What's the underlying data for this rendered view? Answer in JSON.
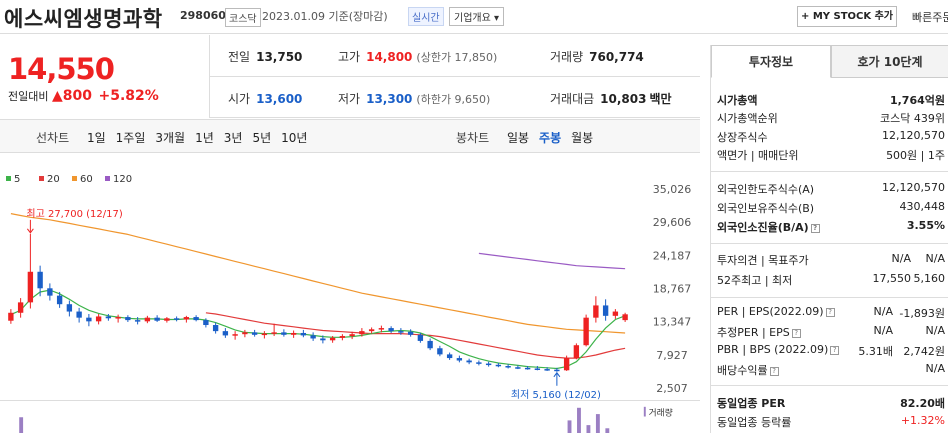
{
  "header": {
    "company_name": "에스씨엠생명과학",
    "stock_code": "298060",
    "market": "코스닥",
    "date": "2023.01.09 기준(장마감)",
    "live": "실시간",
    "overview": "기업개요 ▾",
    "mystock": "+ MY STOCK 추가",
    "quick_order": "빠른주문"
  },
  "price": {
    "current": "14,550",
    "change_label": "전일대비",
    "change_value": "▲800",
    "change_rate": "+5.82%"
  },
  "metrics": {
    "prev_close_label": "전일",
    "prev_close": "13,750",
    "high_label": "고가",
    "high": "14,800",
    "upper_limit": "(상한가 17,850)",
    "volume_label": "거래량",
    "volume": "760,774",
    "open_label": "시가",
    "open": "13,600",
    "low_label": "저가",
    "low": "13,300",
    "lower_limit": "(하한가 9,650)",
    "amount_label": "거래대금",
    "amount": "10,803",
    "amount_unit": "백만"
  },
  "tabs": {
    "line_head": "선차트",
    "line_items": [
      "1일",
      "1주일",
      "3개월",
      "1년",
      "3년",
      "5년",
      "10년"
    ],
    "candle_head": "봉차트",
    "candle_items": [
      "일봉",
      "주봉",
      "월봉"
    ],
    "candle_active": "주봉"
  },
  "chart_data": {
    "type": "candlestick",
    "legend": [
      "5",
      "20",
      "60",
      "120"
    ],
    "legend_colors": [
      "#3db34a",
      "#e23b3b",
      "#f0962e",
      "#9a5bc4"
    ],
    "y_ticks": [
      "35,026",
      "29,606",
      "24,187",
      "18,767",
      "13,347",
      "7,927",
      "2,507"
    ],
    "ylim": [
      2507,
      35026
    ],
    "max_annotation": "최고 27,700 (12/17)",
    "min_annotation": "최저 5,160 (12/02)",
    "volume_label": "거래량",
    "candles": [
      [
        13500,
        15400,
        13000,
        14800
      ],
      [
        14800,
        17200,
        14000,
        16500
      ],
      [
        16500,
        27700,
        15500,
        21500
      ],
      [
        21500,
        22500,
        17500,
        18800
      ],
      [
        18800,
        19600,
        16800,
        17600
      ],
      [
        17600,
        18200,
        15600,
        16200
      ],
      [
        16200,
        16800,
        14200,
        15000
      ],
      [
        15000,
        15600,
        13200,
        14000
      ],
      [
        14000,
        14600,
        12600,
        13400
      ],
      [
        13400,
        14600,
        12900,
        14200
      ],
      [
        14200,
        14600,
        13500,
        13900
      ],
      [
        13900,
        14500,
        13200,
        14100
      ],
      [
        14100,
        14400,
        13300,
        13600
      ],
      [
        13600,
        14100,
        12900,
        13400
      ],
      [
        13400,
        14300,
        13100,
        14000
      ],
      [
        14000,
        14400,
        13300,
        13500
      ],
      [
        13500,
        14100,
        13200,
        13900
      ],
      [
        13900,
        14200,
        13400,
        13700
      ],
      [
        13700,
        14300,
        13200,
        14100
      ],
      [
        14100,
        14400,
        13400,
        13600
      ],
      [
        13600,
        13900,
        12400,
        12800
      ],
      [
        12800,
        13200,
        11400,
        11800
      ],
      [
        11800,
        12300,
        10700,
        11100
      ],
      [
        11100,
        11800,
        10400,
        11300
      ],
      [
        11300,
        12000,
        10800,
        11600
      ],
      [
        11600,
        12000,
        10900,
        11200
      ],
      [
        11200,
        11800,
        10600,
        11400
      ],
      [
        11400,
        13000,
        11000,
        11600
      ],
      [
        11600,
        12100,
        10900,
        11200
      ],
      [
        11200,
        11900,
        10700,
        11500
      ],
      [
        11500,
        12000,
        10800,
        11100
      ],
      [
        11100,
        11600,
        10200,
        10600
      ],
      [
        10600,
        11100,
        9800,
        10300
      ],
      [
        10300,
        11000,
        9900,
        10700
      ],
      [
        10700,
        11300,
        10300,
        11000
      ],
      [
        11000,
        11700,
        10500,
        11300
      ],
      [
        11300,
        12300,
        10900,
        11800
      ],
      [
        11800,
        12400,
        11400,
        12100
      ],
      [
        12100,
        12700,
        11600,
        12300
      ],
      [
        12300,
        12600,
        11500,
        11800
      ],
      [
        11800,
        12300,
        11200,
        11700
      ],
      [
        11700,
        12100,
        10900,
        11200
      ],
      [
        11200,
        11500,
        9900,
        10200
      ],
      [
        10200,
        10600,
        8700,
        9000
      ],
      [
        9000,
        9400,
        7700,
        8000
      ],
      [
        8000,
        8300,
        7100,
        7400
      ],
      [
        7400,
        7800,
        6700,
        7000
      ],
      [
        7000,
        7300,
        6400,
        6700
      ],
      [
        6700,
        7000,
        6200,
        6500
      ],
      [
        6500,
        6800,
        6000,
        6300
      ],
      [
        6300,
        6600,
        5900,
        6100
      ],
      [
        6100,
        6400,
        5700,
        5900
      ],
      [
        5900,
        6200,
        5600,
        5800
      ],
      [
        5800,
        6100,
        5500,
        5700
      ],
      [
        5700,
        6100,
        5400,
        5600
      ],
      [
        5600,
        5900,
        5300,
        5500
      ],
      [
        5500,
        5800,
        5160,
        5400
      ],
      [
        5400,
        7800,
        5300,
        7400
      ],
      [
        7400,
        9800,
        7200,
        9500
      ],
      [
        9500,
        14500,
        9300,
        14000
      ],
      [
        14000,
        17500,
        13200,
        16000
      ],
      [
        16000,
        17000,
        13500,
        14300
      ],
      [
        14300,
        15400,
        13800,
        15000
      ],
      [
        13600,
        14800,
        13300,
        14550
      ]
    ],
    "ma5": [
      14500,
      15200,
      17000,
      18200,
      18500,
      17900,
      17000,
      16000,
      15200,
      14700,
      14300,
      14100,
      13900,
      13800,
      13800,
      13800,
      13700,
      13700,
      13800,
      13800,
      13600,
      13200,
      12600,
      12000,
      11600,
      11500,
      11400,
      11400,
      11400,
      11400,
      11300,
      11100,
      10900,
      10800,
      10800,
      10900,
      11100,
      11400,
      11700,
      11800,
      11900,
      11800,
      11500,
      10900,
      10100,
      9300,
      8400,
      7800,
      7300,
      6900,
      6600,
      6400,
      6200,
      6000,
      5900,
      5800,
      5700,
      6000,
      6800,
      8400,
      10500,
      12300,
      13700,
      14300
    ],
    "ma20": [
      null,
      null,
      null,
      null,
      null,
      null,
      null,
      null,
      null,
      null,
      null,
      null,
      null,
      null,
      null,
      null,
      null,
      null,
      null,
      null,
      14800,
      14600,
      14300,
      14000,
      13700,
      13400,
      13100,
      12900,
      12700,
      12500,
      12300,
      12100,
      11900,
      11800,
      11700,
      11600,
      11500,
      11400,
      11400,
      11400,
      11400,
      11300,
      11200,
      11100,
      10900,
      10600,
      10300,
      10000,
      9700,
      9400,
      9100,
      8800,
      8500,
      8200,
      7900,
      7700,
      7500,
      7400,
      7400,
      7600,
      7900,
      8300,
      8700,
      9000
    ],
    "ma60": [
      31000,
      30700,
      30400,
      30200,
      30000,
      29700,
      29400,
      29100,
      28800,
      28500,
      28200,
      27900,
      27600,
      27200,
      26800,
      26400,
      26000,
      25600,
      25200,
      24800,
      24400,
      24000,
      23600,
      23200,
      22800,
      22400,
      22000,
      21600,
      21200,
      20800,
      20400,
      20000,
      19600,
      19200,
      18800,
      18400,
      18000,
      17700,
      17400,
      17100,
      16800,
      16500,
      16200,
      15900,
      15600,
      15300,
      15000,
      14700,
      14400,
      14100,
      13800,
      13500,
      13200,
      12900,
      12700,
      12500,
      12300,
      12100,
      12000,
      11900,
      11800,
      11700,
      11600,
      11500
    ],
    "ma120": [
      null,
      null,
      null,
      null,
      null,
      null,
      null,
      null,
      null,
      null,
      null,
      null,
      null,
      null,
      null,
      null,
      null,
      null,
      null,
      null,
      null,
      null,
      null,
      null,
      null,
      null,
      null,
      null,
      null,
      null,
      null,
      null,
      null,
      null,
      null,
      null,
      null,
      null,
      null,
      null,
      null,
      null,
      null,
      null,
      null,
      null,
      null,
      null,
      24500,
      24300,
      24100,
      23900,
      23700,
      23500,
      23300,
      23100,
      22900,
      22700,
      22500,
      22400,
      22300,
      22200,
      22100,
      22000
    ],
    "volumes": [
      1,
      0,
      0,
      0,
      0,
      0,
      0,
      0,
      0,
      0,
      0,
      0,
      0,
      0,
      0,
      0,
      0,
      0,
      0,
      0,
      0,
      0,
      0,
      0,
      0,
      0,
      0,
      0,
      0,
      0,
      0,
      0,
      0,
      0,
      0,
      0,
      0,
      0,
      0,
      0,
      0,
      0,
      0,
      0,
      0,
      0,
      0,
      0,
      0,
      0,
      0,
      0,
      0,
      0,
      0,
      0,
      0,
      0,
      0.8,
      1.6,
      0.5,
      1.2,
      0.3,
      0
    ]
  },
  "right_panel": {
    "tab_invest": "투자정보",
    "tab_orderbook": "호가 10단계",
    "market_cap_label": "시가총액",
    "market_cap": "1,764억원",
    "market_cap_rank_label": "시가총액순위",
    "market_cap_rank": "코스닥 439위",
    "shares_label": "상장주식수",
    "shares": "12,120,570",
    "par_label": "액면가 | 매매단위",
    "par": "500원 | 1주",
    "foreign_limit_label": "외국인한도주식수(A)",
    "foreign_limit": "12,120,570",
    "foreign_hold_label": "외국인보유주식수(B)",
    "foreign_hold": "430,448",
    "foreign_rate_label": "외국인소진율(B/A)",
    "foreign_rate": "3.55%",
    "opinion_label": "투자의견 | 목표주가",
    "opinion_val1": "N/A",
    "opinion_val2": "N/A",
    "week52_label": "52주최고 | 최저",
    "week52_high": "17,550",
    "week52_low": "5,160",
    "per_label": "PER | EPS(2022.09)",
    "per": "N/A",
    "eps": "-1,893원",
    "est_per_label": "추정PER | EPS",
    "est_per": "N/A",
    "est_eps": "N/A",
    "pbr_label": "PBR | BPS (2022.09)",
    "pbr": "5.31배",
    "bps": "2,742원",
    "div_label": "배당수익률",
    "div": "N/A",
    "sector_per_label": "동일업종 PER",
    "sector_per": "82.20배",
    "sector_change_label": "동일업종 등락률",
    "sector_change": "+1.32%"
  }
}
